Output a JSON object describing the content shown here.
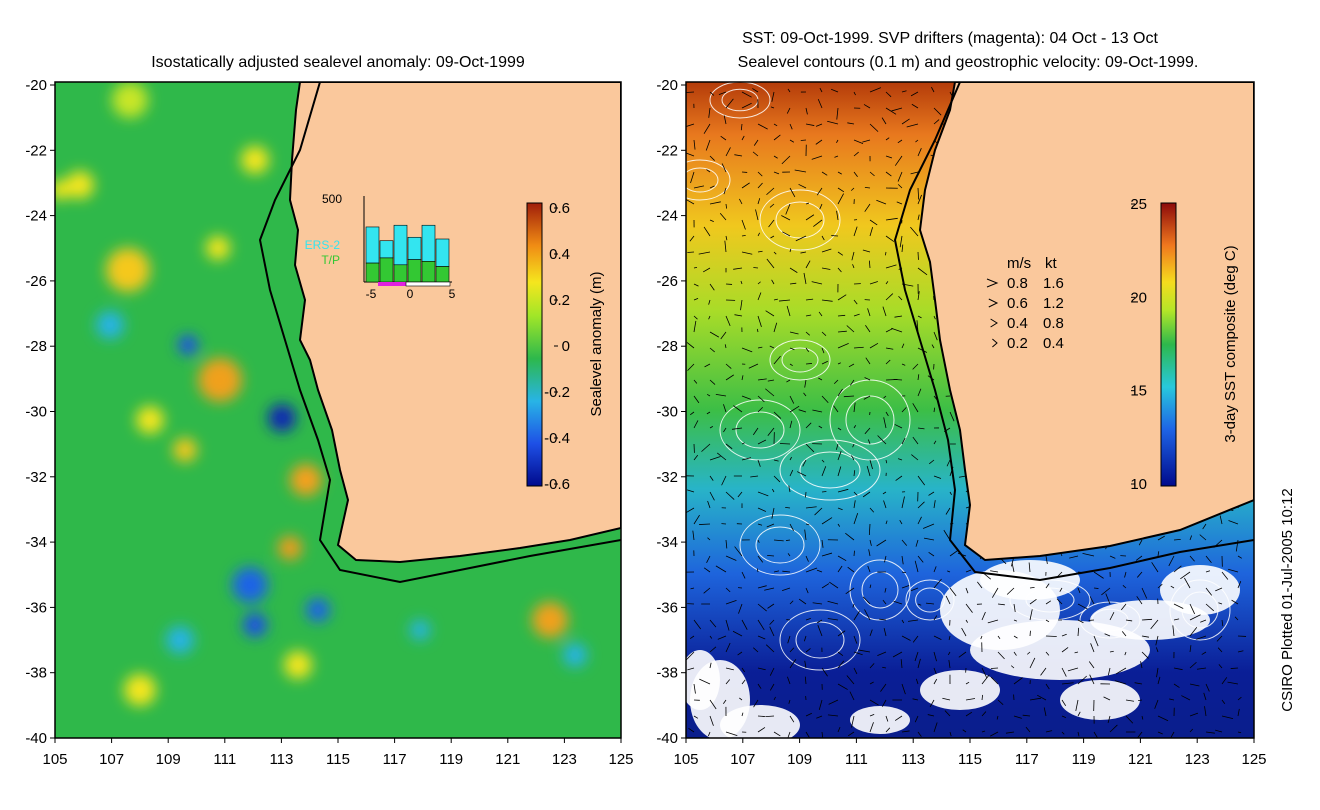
{
  "left_panel": {
    "title": "Isostatically adjusted sealevel anomaly: 09-Oct-1999",
    "y_ticks": [
      "-20",
      "-22",
      "-24",
      "-26",
      "-28",
      "-30",
      "-32",
      "-34",
      "-36",
      "-38",
      "-40"
    ],
    "x_ticks": [
      "105",
      "107",
      "109",
      "111",
      "113",
      "115",
      "117",
      "119",
      "121",
      "123",
      "125"
    ],
    "colorbar": {
      "label": "Sealevel anomaly (m)",
      "ticks": [
        "0.6",
        "0.4",
        "0.2",
        "0",
        "-0.2",
        "-0.4",
        "-0.6"
      ]
    },
    "inset": {
      "ymax_label": "500",
      "legend_ers": "ERS-2",
      "legend_tp": "T/P",
      "x_ticks": [
        "-5",
        "0",
        "5"
      ],
      "ers_counts": [
        320,
        240,
        330,
        260,
        330,
        250
      ],
      "tp_counts": [
        110,
        140,
        100,
        130,
        120,
        90
      ],
      "colors": {
        "ers": "#33e5f0",
        "tp": "#33c833",
        "drift": "#e020e0"
      }
    }
  },
  "right_panel": {
    "title_line1": "SST: 09-Oct-1999. SVP drifters (magenta): 04 Oct - 13 Oct",
    "title_line2": "Sealevel contours (0.1 m) and geostrophic velocity: 09-Oct-1999.",
    "y_ticks": [
      "-20",
      "-22",
      "-24",
      "-26",
      "-28",
      "-30",
      "-32",
      "-34",
      "-36",
      "-38",
      "-40"
    ],
    "x_ticks": [
      "105",
      "107",
      "109",
      "111",
      "113",
      "115",
      "117",
      "119",
      "121",
      "123",
      "125"
    ],
    "colorbar": {
      "label": "3-day SST composite (deg C)",
      "ticks": [
        "25",
        "20",
        "15",
        "10"
      ]
    },
    "velocity_legend": {
      "header_ms": "m/s",
      "header_kt": "kt",
      "rows": [
        {
          "ms": "0.8",
          "kt": "1.6"
        },
        {
          "ms": "0.6",
          "kt": "1.2"
        },
        {
          "ms": "0.4",
          "kt": "0.8"
        },
        {
          "ms": "0.2",
          "kt": "0.4"
        }
      ]
    }
  },
  "credit": "CSIRO Plotted 01-Jul-2005 10:12",
  "colors": {
    "land": "#fac89c",
    "ocean": "#2fb84a",
    "coast": "#000000"
  }
}
